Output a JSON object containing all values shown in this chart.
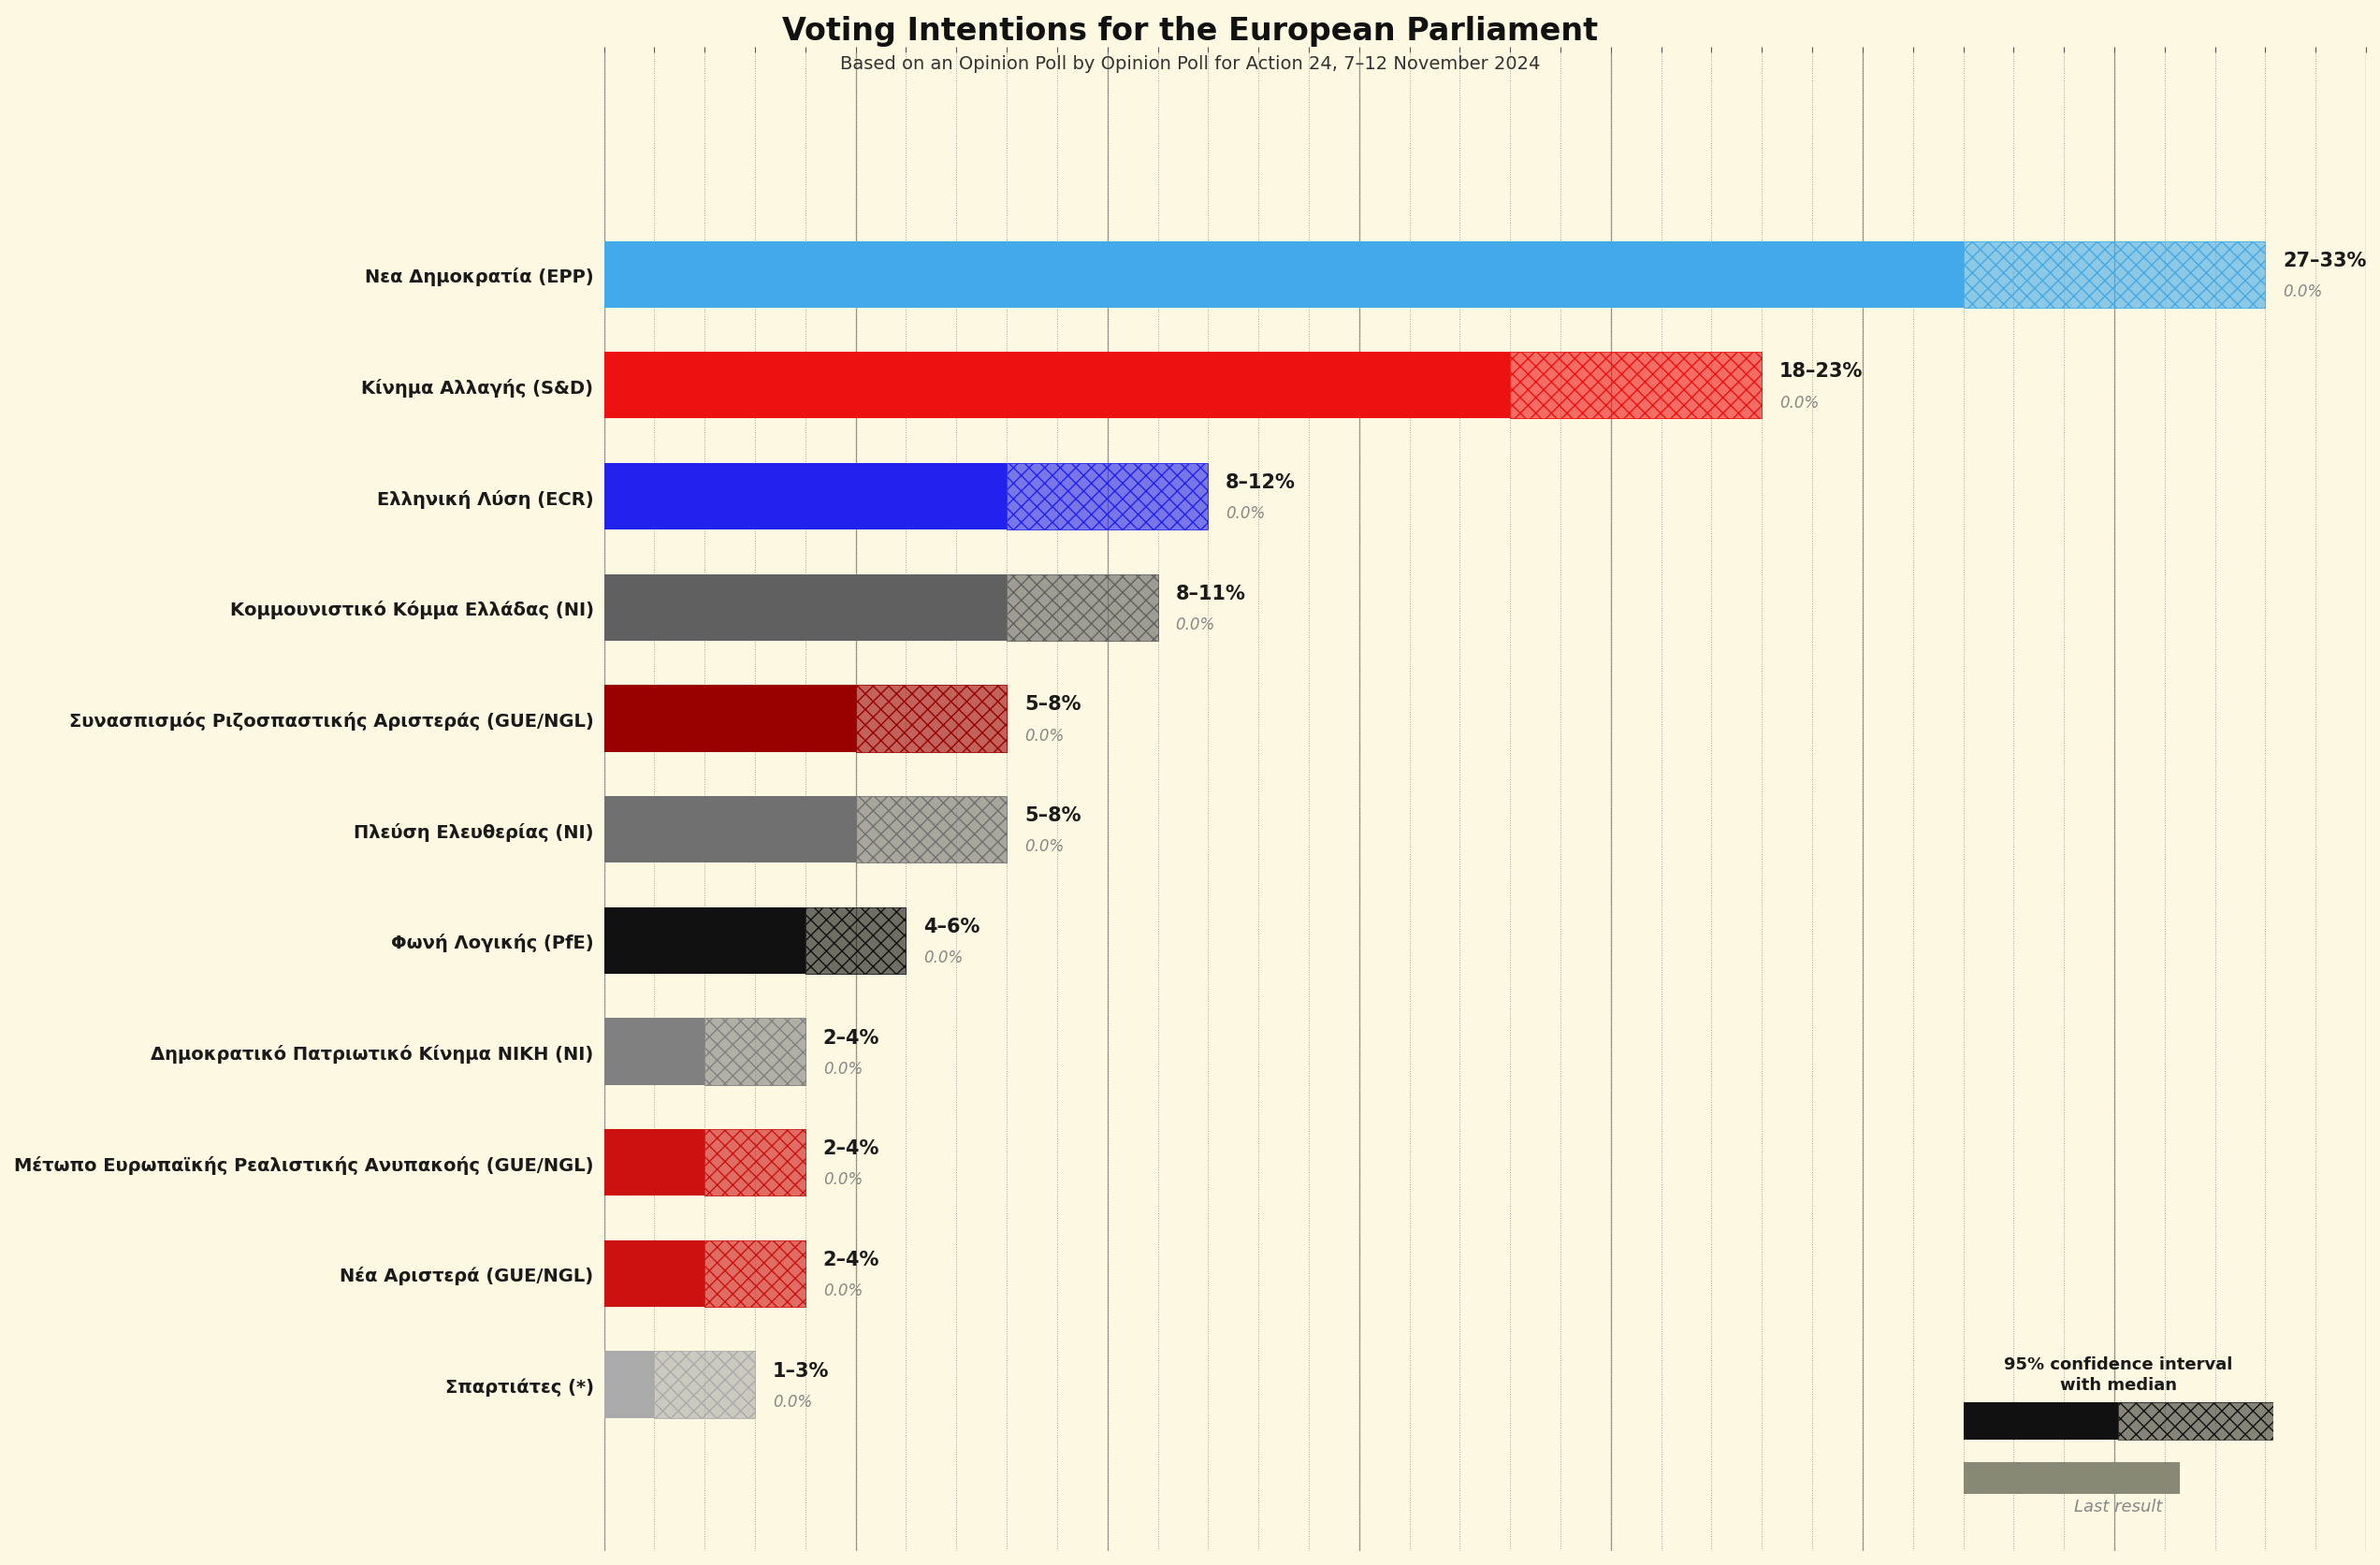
{
  "title": "Voting Intentions for the European Parliament",
  "subtitle": "Based on an Opinion Poll by Opinion Poll for Action 24, 7–12 November 2024",
  "background_color": "#fdf8e1",
  "parties": [
    {
      "name": "Nεα Δημοκρατία (EPP)",
      "low": 27,
      "high": 33,
      "color": "#42aae8",
      "last": 0.0
    },
    {
      "name": "Κίνημα Αλλαγής (S&D)",
      "low": 18,
      "high": 23,
      "color": "#ee1111",
      "last": 0.0
    },
    {
      "name": "Ελληνική Λύση (ECR)",
      "low": 8,
      "high": 12,
      "color": "#2222ee",
      "last": 0.0
    },
    {
      "name": "Κομμουνιστικό Κόμμα Ελλάδας (NI)",
      "low": 8,
      "high": 11,
      "color": "#606060",
      "last": 0.0
    },
    {
      "name": "Συνασπισμός Ριζοσπαστικής Αριστεράς (GUE/NGL)",
      "low": 5,
      "high": 8,
      "color": "#990000",
      "last": 0.0
    },
    {
      "name": "Πλεύση Ελευθερίας (NI)",
      "low": 5,
      "high": 8,
      "color": "#707070",
      "last": 0.0
    },
    {
      "name": "Φωνή Λογικής (PfE)",
      "low": 4,
      "high": 6,
      "color": "#111111",
      "last": 0.0
    },
    {
      "name": "Δημοκρατικό Πατριωτικό Κίνημα ΝΙΚΗ (NI)",
      "low": 2,
      "high": 4,
      "color": "#808080",
      "last": 0.0
    },
    {
      "name": "Μέτωπο Ευρωπαϊκής Ρεαλιστικής Ανυπακοής (GUE/NGL)",
      "low": 2,
      "high": 4,
      "color": "#cc1111",
      "last": 0.0
    },
    {
      "name": "Νέα Αριστερά (GUE/NGL)",
      "low": 2,
      "high": 4,
      "color": "#cc1111",
      "last": 0.0
    },
    {
      "name": "Σπαρτιάτες (*)",
      "low": 1,
      "high": 3,
      "color": "#aaaaaa",
      "last": 0.0
    }
  ],
  "xlim_max": 35,
  "legend_text1": "95% confidence interval",
  "legend_text2": "with median",
  "legend_text3": "Last result"
}
